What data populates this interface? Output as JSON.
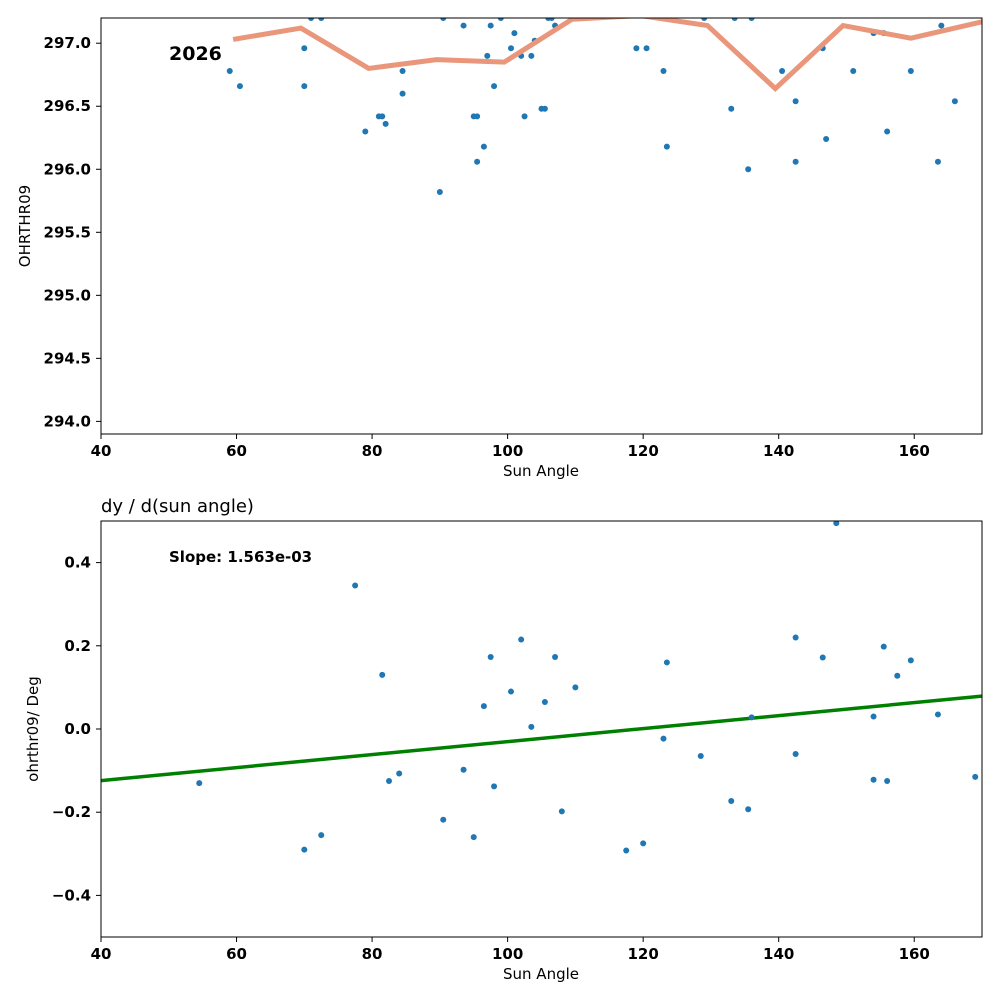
{
  "chart_data": [
    {
      "type": "scatter",
      "title": "",
      "xlabel": "Sun Angle",
      "ylabel": "OHRTHR09",
      "xlim": [
        40,
        170
      ],
      "ylim": [
        293.9,
        297.2
      ],
      "xticks": [
        "40",
        "60",
        "80",
        "100",
        "120",
        "140",
        "160"
      ],
      "yticks": [
        "294.0",
        "294.5",
        "295.0",
        "295.5",
        "296.0",
        "296.5",
        "297.0"
      ],
      "annotation": "2026",
      "grid": false,
      "legend": "none",
      "colors": {
        "points": "#1f77b4",
        "line": "#e9967a"
      },
      "series": [
        {
          "type": "scatter",
          "points": [
            [
              59,
              296.78
            ],
            [
              60.5,
              296.66
            ],
            [
              70,
              296.96
            ],
            [
              70,
              296.66
            ],
            [
              71,
              297.2
            ],
            [
              72.5,
              297.2
            ],
            [
              79,
              296.3
            ],
            [
              81,
              296.42
            ],
            [
              81.5,
              296.42
            ],
            [
              82,
              296.36
            ],
            [
              84.5,
              296.78
            ],
            [
              84.5,
              296.6
            ],
            [
              90,
              295.82
            ],
            [
              90.5,
              297.2
            ],
            [
              93.5,
              297.14
            ],
            [
              95,
              296.42
            ],
            [
              95.5,
              296.06
            ],
            [
              95.5,
              296.42
            ],
            [
              96.5,
              296.18
            ],
            [
              97,
              296.9
            ],
            [
              97.5,
              297.14
            ],
            [
              98,
              296.66
            ],
            [
              99,
              297.2
            ],
            [
              100.5,
              296.96
            ],
            [
              101,
              297.08
            ],
            [
              102,
              296.9
            ],
            [
              102.5,
              296.42
            ],
            [
              103.5,
              296.9
            ],
            [
              104,
              297.02
            ],
            [
              105,
              296.48
            ],
            [
              105.5,
              296.48
            ],
            [
              106,
              297.2
            ],
            [
              106.5,
              297.2
            ],
            [
              107,
              297.14
            ],
            [
              119,
              296.96
            ],
            [
              120.5,
              296.96
            ],
            [
              123,
              296.78
            ],
            [
              123.5,
              296.18
            ],
            [
              129,
              297.2
            ],
            [
              133,
              296.48
            ],
            [
              133.5,
              297.2
            ],
            [
              135.5,
              296.0
            ],
            [
              136,
              297.2
            ],
            [
              140.5,
              296.78
            ],
            [
              142.5,
              296.54
            ],
            [
              142.5,
              296.06
            ],
            [
              146.5,
              296.96
            ],
            [
              147,
              296.24
            ],
            [
              151,
              296.78
            ],
            [
              154,
              297.08
            ],
            [
              155.5,
              297.08
            ],
            [
              156,
              296.3
            ],
            [
              159.5,
              296.78
            ],
            [
              163.5,
              296.06
            ],
            [
              164,
              297.14
            ],
            [
              166,
              296.54
            ]
          ]
        },
        {
          "type": "line",
          "points": [
            [
              59.5,
              297.03
            ],
            [
              69.5,
              297.12
            ],
            [
              79.5,
              296.8
            ],
            [
              89.5,
              296.87
            ],
            [
              99.5,
              296.85
            ],
            [
              109.5,
              297.19
            ],
            [
              119.5,
              297.22
            ],
            [
              129.5,
              297.14
            ],
            [
              139.5,
              296.64
            ],
            [
              149.5,
              297.14
            ],
            [
              159.5,
              297.04
            ],
            [
              170,
              297.17
            ]
          ]
        }
      ]
    },
    {
      "type": "scatter",
      "title": "dy / d(sun angle)",
      "xlabel": "Sun Angle",
      "ylabel": "ohrthr09/ Deg",
      "xlim": [
        40,
        170
      ],
      "ylim": [
        -0.5,
        0.5
      ],
      "xticks": [
        "40",
        "60",
        "80",
        "100",
        "120",
        "140",
        "160"
      ],
      "yticks": [
        "−0.4",
        "−0.2",
        "0.0",
        "0.2",
        "0.4"
      ],
      "annotation": "Slope: 1.563e-03",
      "grid": false,
      "legend": "none",
      "colors": {
        "points": "#1f77b4",
        "line": "#008000"
      },
      "series": [
        {
          "type": "scatter",
          "points": [
            [
              54.5,
              -0.13
            ],
            [
              70,
              -0.29
            ],
            [
              72.5,
              -0.255
            ],
            [
              77.5,
              0.345
            ],
            [
              81.5,
              0.13
            ],
            [
              82.5,
              -0.125
            ],
            [
              84,
              -0.107
            ],
            [
              90.5,
              -0.218
            ],
            [
              93.5,
              -0.098
            ],
            [
              95,
              -0.26
            ],
            [
              96.5,
              0.055
            ],
            [
              97.5,
              0.173
            ],
            [
              98,
              -0.138
            ],
            [
              100.5,
              0.09
            ],
            [
              102,
              0.215
            ],
            [
              103.5,
              0.005
            ],
            [
              105.5,
              0.065
            ],
            [
              107,
              0.173
            ],
            [
              108,
              -0.198
            ],
            [
              110,
              0.1
            ],
            [
              117.5,
              -0.292
            ],
            [
              120,
              -0.275
            ],
            [
              123,
              -0.023
            ],
            [
              123.5,
              0.16
            ],
            [
              128.5,
              -0.065
            ],
            [
              133,
              -0.173
            ],
            [
              135.5,
              -0.193
            ],
            [
              136,
              0.028
            ],
            [
              142.5,
              0.22
            ],
            [
              142.5,
              -0.06
            ],
            [
              146.5,
              0.172
            ],
            [
              148.5,
              0.495
            ],
            [
              154,
              0.03
            ],
            [
              154,
              -0.122
            ],
            [
              155.5,
              0.198
            ],
            [
              156,
              -0.125
            ],
            [
              157.5,
              0.128
            ],
            [
              159.5,
              0.165
            ],
            [
              163.5,
              0.035
            ],
            [
              169,
              -0.115
            ]
          ]
        },
        {
          "type": "line",
          "points": [
            [
              40,
              -0.124
            ],
            [
              170,
              0.079
            ]
          ]
        }
      ]
    }
  ]
}
